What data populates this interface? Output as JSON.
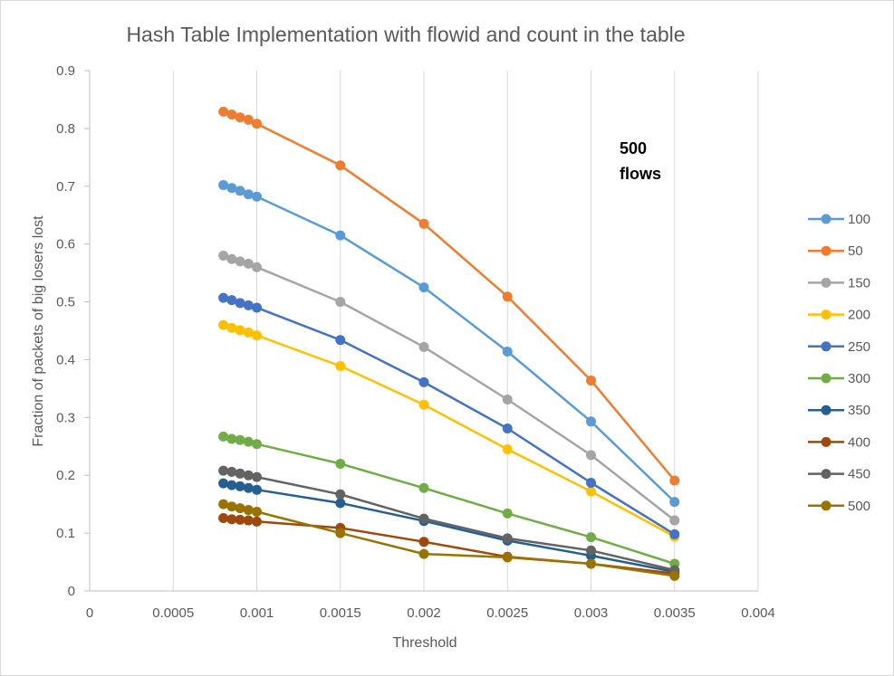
{
  "chart_data": {
    "type": "line",
    "title": "Hash Table Implementation with flowid and count in the table",
    "xlabel": "Threshold",
    "ylabel": "Fraction of packets of big losers lost",
    "xlim": [
      0,
      0.004
    ],
    "ylim": [
      0,
      0.9
    ],
    "x_ticks": [
      "0",
      "0.0005",
      "0.001",
      "0.0015",
      "0.002",
      "0.0025",
      "0.003",
      "0.0035",
      "0.004"
    ],
    "y_ticks": [
      "0",
      "0.1",
      "0.2",
      "0.3",
      "0.4",
      "0.5",
      "0.6",
      "0.7",
      "0.8",
      "0.9"
    ],
    "grid": "vertical",
    "legend_position": "right",
    "annotation": [
      "500",
      "flows"
    ],
    "x": [
      0.0008,
      0.00085,
      0.0009,
      0.00095,
      0.001,
      0.0015,
      0.002,
      0.0025,
      0.003,
      0.0035
    ],
    "series": [
      {
        "name": "100",
        "color": "#5B9BD5",
        "values": [
          0.702,
          0.697,
          0.692,
          0.686,
          0.682,
          0.615,
          0.525,
          0.414,
          0.293,
          0.154
        ]
      },
      {
        "name": "50",
        "color": "#ED7D31",
        "values": [
          0.829,
          0.824,
          0.819,
          0.815,
          0.808,
          0.736,
          0.635,
          0.509,
          0.364,
          0.191
        ]
      },
      {
        "name": "150",
        "color": "#A5A5A5",
        "values": [
          0.58,
          0.574,
          0.57,
          0.566,
          0.56,
          0.5,
          0.422,
          0.331,
          0.235,
          0.122
        ]
      },
      {
        "name": "200",
        "color": "#FFC000",
        "values": [
          0.46,
          0.455,
          0.451,
          0.447,
          0.442,
          0.389,
          0.322,
          0.245,
          0.172,
          0.094
        ]
      },
      {
        "name": "250",
        "color": "#4472C4",
        "values": [
          0.507,
          0.503,
          0.498,
          0.494,
          0.49,
          0.434,
          0.361,
          0.281,
          0.187,
          0.098
        ]
      },
      {
        "name": "300",
        "color": "#70AD47",
        "values": [
          0.267,
          0.263,
          0.261,
          0.258,
          0.254,
          0.22,
          0.178,
          0.134,
          0.093,
          0.047
        ]
      },
      {
        "name": "350",
        "color": "#255E91",
        "values": [
          0.186,
          0.183,
          0.181,
          0.178,
          0.175,
          0.152,
          0.121,
          0.087,
          0.061,
          0.033
        ]
      },
      {
        "name": "400",
        "color": "#9E480E",
        "values": [
          0.126,
          0.124,
          0.123,
          0.122,
          0.12,
          0.109,
          0.085,
          0.059,
          0.047,
          0.03
        ]
      },
      {
        "name": "450",
        "color": "#636363",
        "values": [
          0.208,
          0.206,
          0.203,
          0.2,
          0.197,
          0.167,
          0.125,
          0.091,
          0.07,
          0.036
        ]
      },
      {
        "name": "500",
        "color": "#997300",
        "values": [
          0.15,
          0.146,
          0.143,
          0.14,
          0.137,
          0.1,
          0.064,
          0.058,
          0.047,
          0.026
        ]
      }
    ]
  }
}
